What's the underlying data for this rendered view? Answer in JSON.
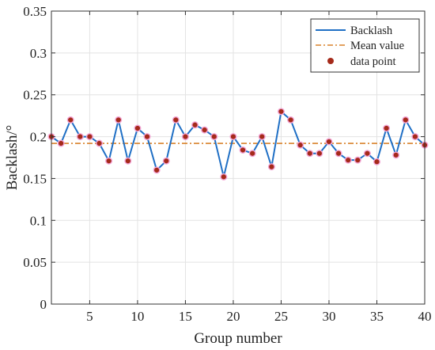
{
  "chart_data": {
    "type": "line",
    "xlabel": "Group number",
    "ylabel": "Backlash/°",
    "xlim": [
      1,
      40
    ],
    "ylim": [
      0,
      0.35
    ],
    "x_ticks": [
      5,
      10,
      15,
      20,
      25,
      30,
      35,
      40
    ],
    "y_ticks": [
      0,
      0.05,
      0.1,
      0.15,
      0.2,
      0.25,
      0.3,
      0.35
    ],
    "grid": true,
    "legend_position": "top-right",
    "x": [
      1,
      2,
      3,
      4,
      5,
      6,
      7,
      8,
      9,
      10,
      11,
      12,
      13,
      14,
      15,
      16,
      17,
      18,
      19,
      20,
      21,
      22,
      23,
      24,
      25,
      26,
      27,
      28,
      29,
      30,
      31,
      32,
      33,
      34,
      35,
      36,
      37,
      38,
      39,
      40
    ],
    "series": [
      {
        "name": "Backlash",
        "line_color": "#1f6fc5",
        "point_color": "#a52a1a",
        "point_name": "data point",
        "values": [
          0.2,
          0.192,
          0.22,
          0.2,
          0.2,
          0.192,
          0.171,
          0.22,
          0.171,
          0.21,
          0.2,
          0.16,
          0.171,
          0.22,
          0.2,
          0.214,
          0.208,
          0.2,
          0.152,
          0.2,
          0.184,
          0.18,
          0.2,
          0.164,
          0.23,
          0.22,
          0.19,
          0.18,
          0.18,
          0.194,
          0.18,
          0.172,
          0.172,
          0.18,
          0.17,
          0.21,
          0.178,
          0.22,
          0.2,
          0.19
        ]
      }
    ],
    "mean": {
      "name": "Mean value",
      "value": 0.192,
      "color": "#d9822b"
    },
    "legend": [
      "Backlash",
      "Mean value",
      "data point"
    ]
  }
}
